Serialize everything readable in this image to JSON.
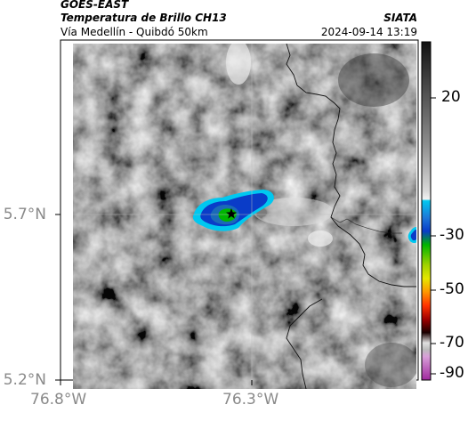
{
  "header": {
    "satellite": "GOES-EAST",
    "product": "Temperatura de Brillo CH13",
    "route": "Vía Medellín - Quibdó 50km",
    "agency": "SIATA",
    "datetime": "2024-09-14 13:19"
  },
  "map": {
    "lat_labels": [
      "5.7°N",
      "5.2°N"
    ],
    "lon_labels": [
      "76.8°W",
      "76.3°W"
    ],
    "marker_icon": "star-icon"
  },
  "colorbar": {
    "labels": [
      "20",
      "-30",
      "-50",
      "-70",
      "-90"
    ],
    "colors": {
      "cyan": "#00c8f0",
      "blue": "#0a3cc8",
      "green": "#00b400",
      "yellow": "#e6e600",
      "orange": "#ff6400",
      "red": "#c80000",
      "purple": "#b43cb4"
    }
  }
}
